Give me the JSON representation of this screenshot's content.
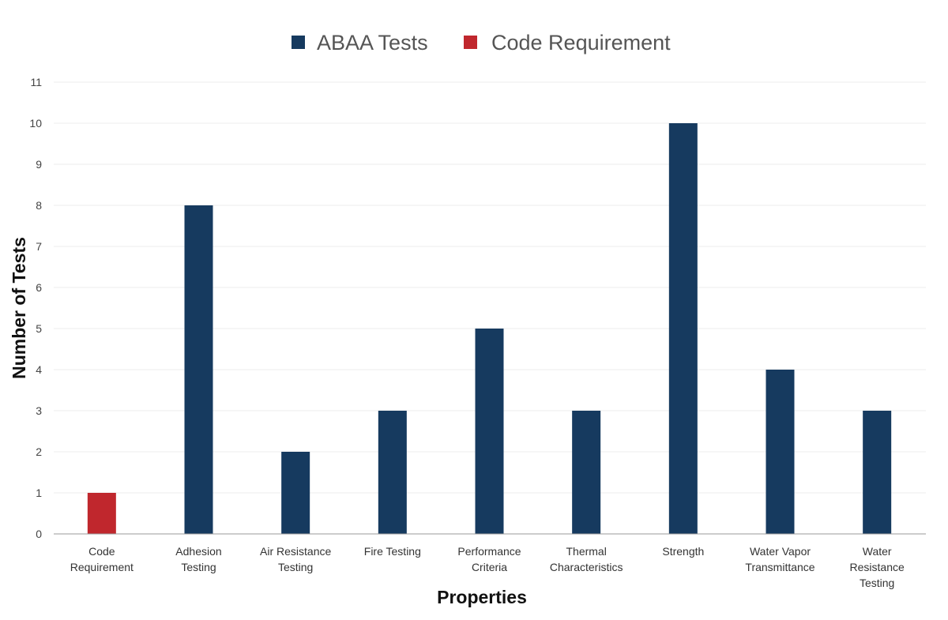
{
  "chart_data": {
    "type": "bar",
    "legend_position": "top-center",
    "grid": true,
    "series": [
      {
        "name": "ABAA Tests",
        "color": "#163a5f"
      },
      {
        "name": "Code Requirement",
        "color": "#c0272d"
      }
    ],
    "categories": [
      {
        "label": [
          "Code",
          "Requirement"
        ],
        "value": 1,
        "series": 1
      },
      {
        "label": [
          "Adhesion",
          "Testing"
        ],
        "value": 8,
        "series": 0
      },
      {
        "label": [
          "Air Resistance",
          "Testing"
        ],
        "value": 2,
        "series": 0
      },
      {
        "label": [
          "Fire Testing"
        ],
        "value": 3,
        "series": 0
      },
      {
        "label": [
          "Performance",
          "Criteria"
        ],
        "value": 5,
        "series": 0
      },
      {
        "label": [
          "Thermal",
          "Characteristics"
        ],
        "value": 3,
        "series": 0
      },
      {
        "label": [
          "Strength"
        ],
        "value": 10,
        "series": 0
      },
      {
        "label": [
          "Water Vapor",
          "Transmittance"
        ],
        "value": 4,
        "series": 0
      },
      {
        "label": [
          "Water",
          "Resistance",
          "Testing"
        ],
        "value": 3,
        "series": 0
      }
    ],
    "xlabel": "Properties",
    "ylabel": "Number of Tests",
    "ylim": [
      0,
      11
    ],
    "yticks": [
      0,
      1,
      2,
      3,
      4,
      5,
      6,
      7,
      8,
      9,
      10,
      11
    ]
  }
}
